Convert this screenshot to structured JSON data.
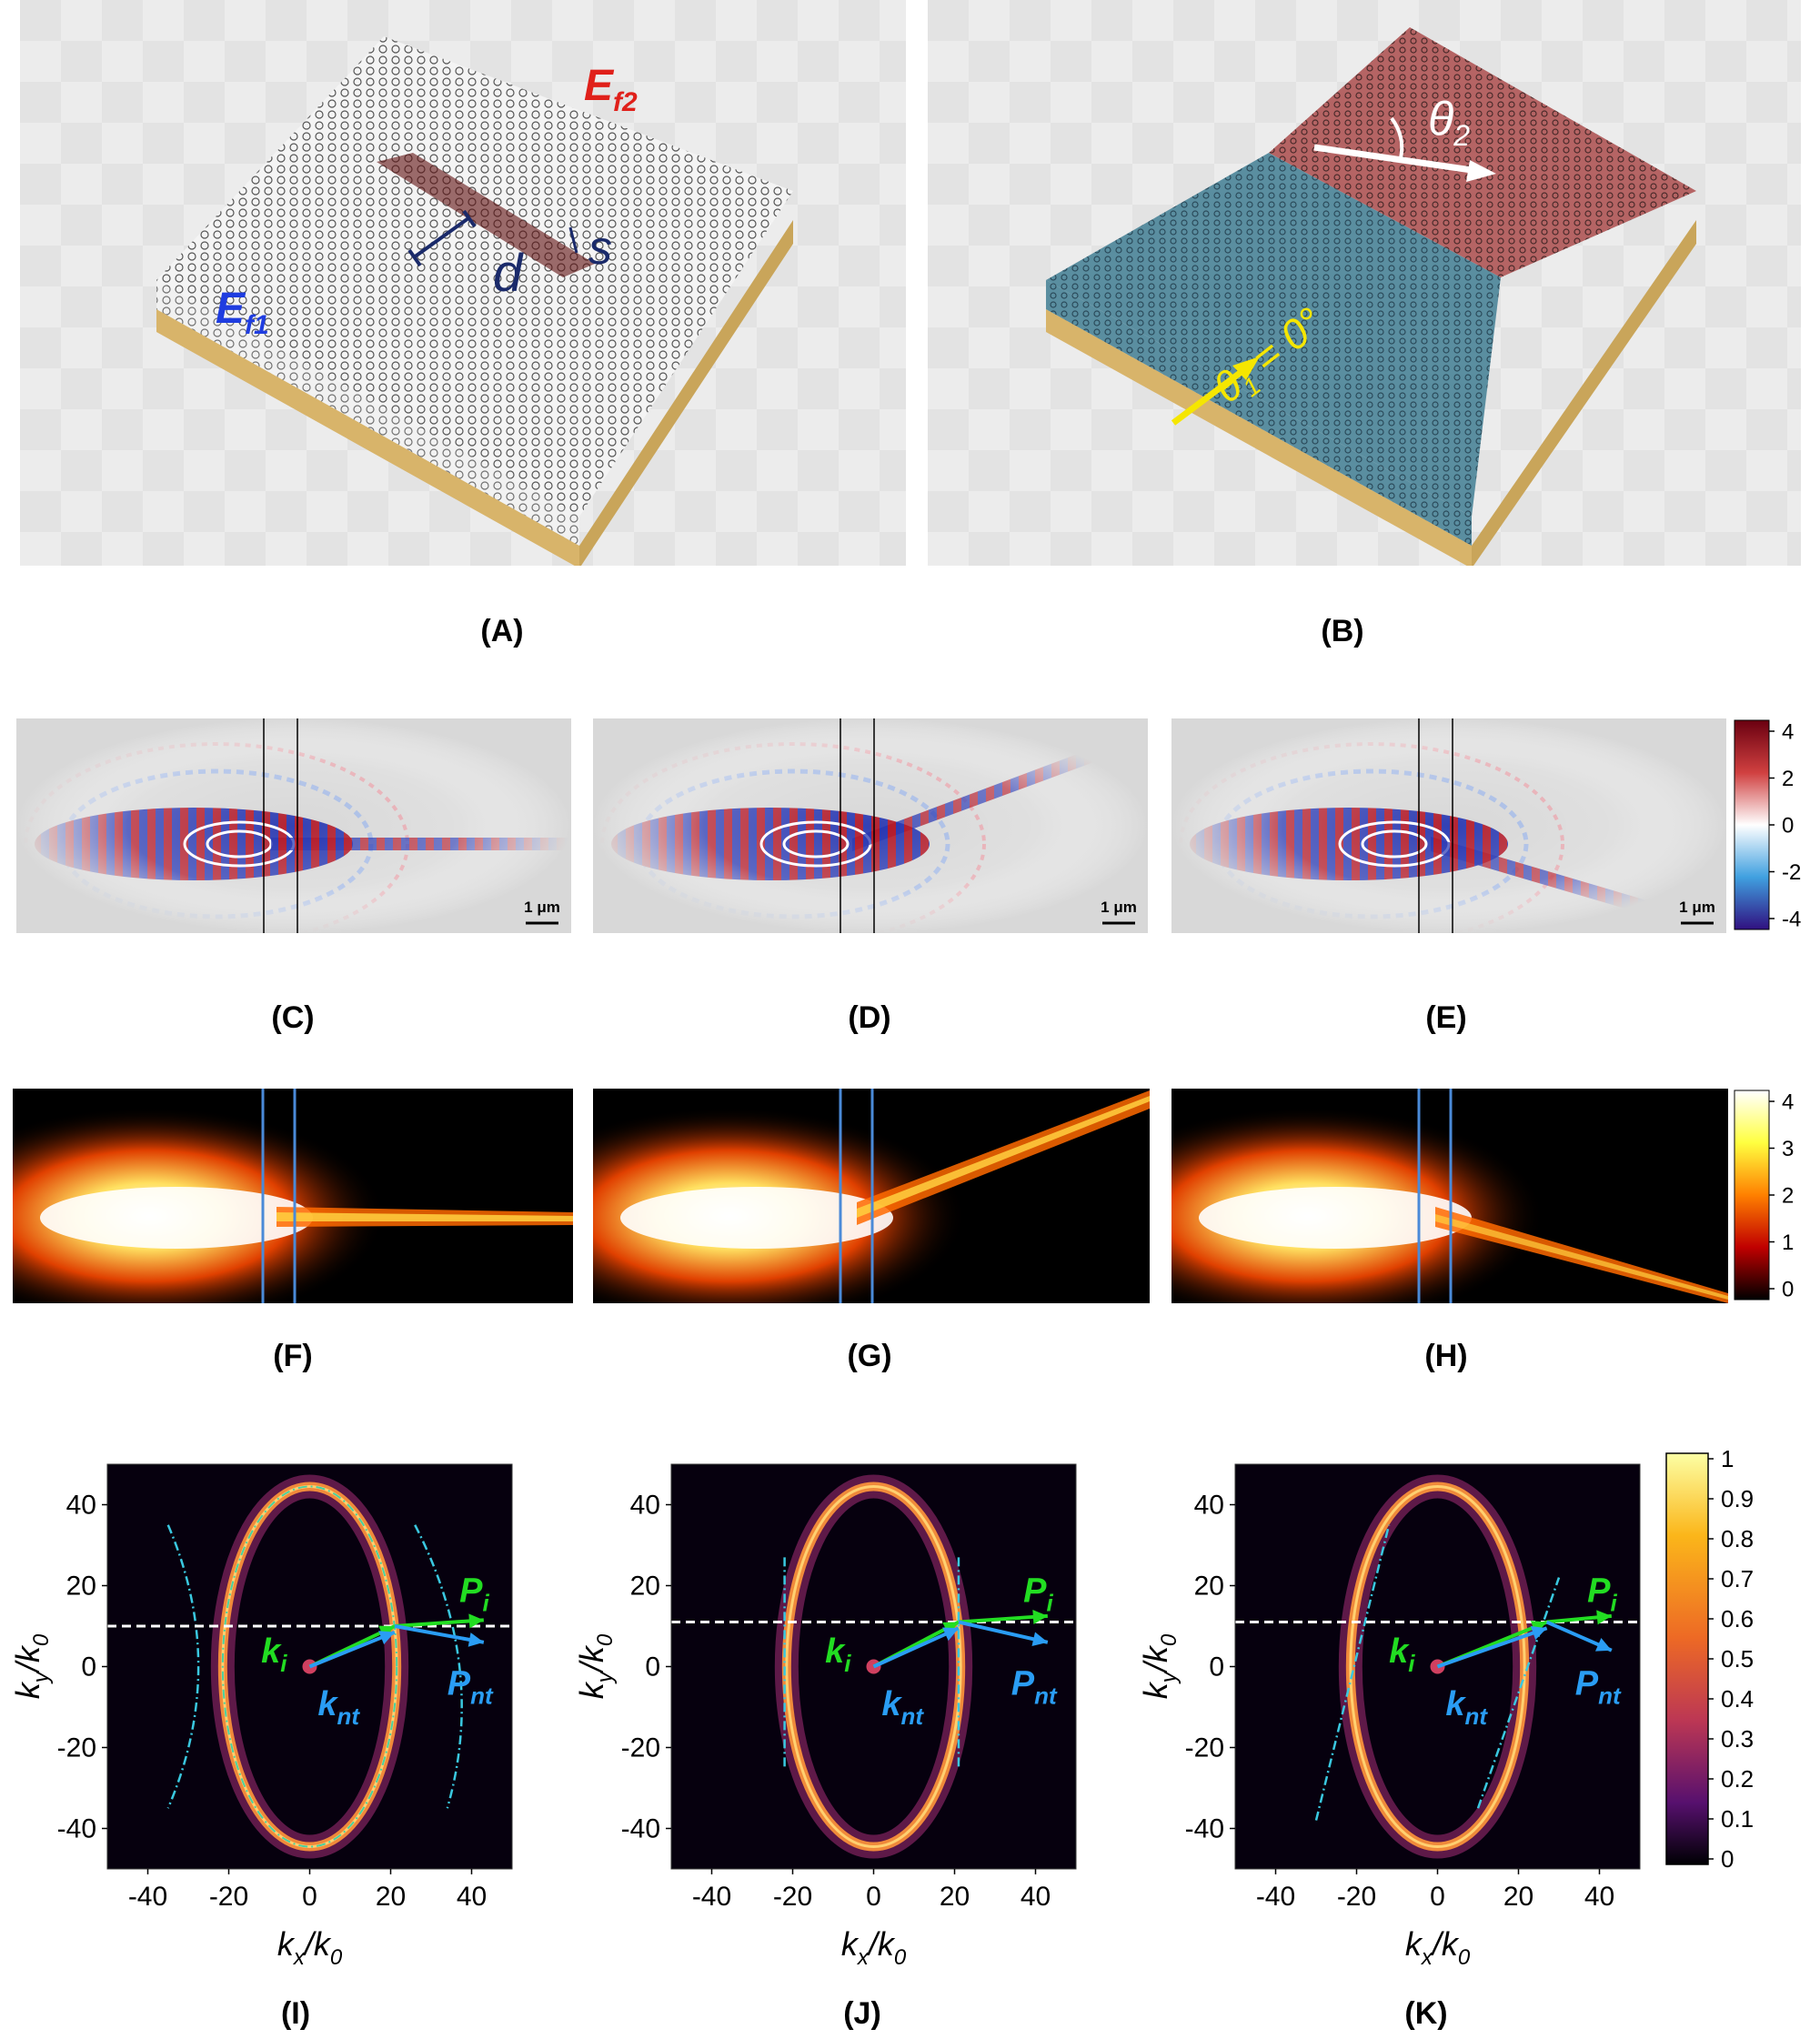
{
  "panel_labels": {
    "A": "(A)",
    "B": "(B)",
    "C": "(C)",
    "D": "(D)",
    "E": "(E)",
    "F": "(F)",
    "G": "(G)",
    "H": "(H)",
    "I": "(I)",
    "J": "(J)",
    "K": "(K)"
  },
  "panel_a": {
    "ef1": "E",
    "ef1_sub": "f1",
    "ef2": "E",
    "ef2_sub": "f2",
    "d": "d",
    "s": "s"
  },
  "panel_b": {
    "theta2": "θ",
    "theta2_sub": "2",
    "theta1": "θ",
    "theta1_sub": "1",
    "theta1_eq": " = 0°"
  },
  "scale_bar": "1 μm",
  "colorbar_field": {
    "ticks": [
      "4",
      "2",
      "0",
      "-2",
      "-4"
    ]
  },
  "colorbar_intensity": {
    "ticks": [
      "4",
      "3",
      "2",
      "1",
      "0"
    ]
  },
  "colorbar_k": {
    "ticks": [
      "1",
      "0.9",
      "0.8",
      "0.7",
      "0.6",
      "0.5",
      "0.4",
      "0.3",
      "0.2",
      "0.1",
      "0"
    ]
  },
  "k_axes": {
    "xlabel_main": "k",
    "xlabel_sub": "x",
    "xlabel_den": "/k",
    "xlabel_den_sub": "0",
    "ylabel_main": "k",
    "ylabel_sub": "y",
    "ylabel_den": "/k",
    "ylabel_den_sub": "0",
    "xticks": [
      "-40",
      "-20",
      "0",
      "20",
      "40"
    ],
    "yticks": [
      "40",
      "20",
      "0",
      "-20",
      "-40"
    ],
    "range": [
      -50,
      50
    ]
  },
  "vectors": {
    "pi": "P",
    "pi_sub": "i",
    "pnt": "P",
    "pnt_sub": "nt",
    "ki": "k",
    "ki_sub": "i",
    "knt": "k",
    "knt_sub": "nt"
  },
  "colors": {
    "green": "#22dd22",
    "blue": "#2a9df4",
    "yellow": "#f5e600",
    "red": "#e0201a",
    "navy": "#1a2a6a"
  }
}
